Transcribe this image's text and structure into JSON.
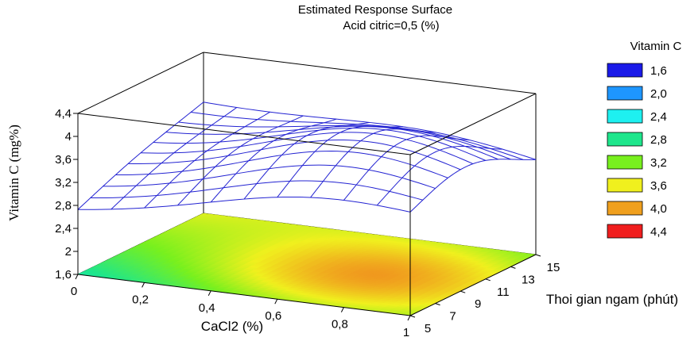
{
  "chart_data": {
    "type": "surface",
    "title": "Estimated Response Surface",
    "subtitle": "Acid citric=0,5 (%)",
    "xlabel": "CaCl2 (%)",
    "ylabel": "Thoi gian ngam (phút)",
    "zlabel": "Vitamin C  (mg%)",
    "x_ticks": [
      "0",
      "0,2",
      "0,4",
      "0,6",
      "0,8",
      "1"
    ],
    "y_ticks": [
      "5",
      "7",
      "9",
      "11",
      "13",
      "15"
    ],
    "z_ticks": [
      "1,6",
      "2",
      "2,4",
      "2,8",
      "3,2",
      "3,6",
      "4",
      "4,4"
    ],
    "xlim": [
      0,
      1
    ],
    "ylim": [
      5,
      15
    ],
    "zlim": [
      1.6,
      4.4
    ],
    "surface": {
      "x": [
        0,
        0.1,
        0.2,
        0.3,
        0.4,
        0.5,
        0.6,
        0.7,
        0.8,
        0.9,
        1.0
      ],
      "y": [
        5,
        6,
        7,
        8,
        9,
        10,
        11,
        12,
        13,
        14,
        15
      ],
      "peak_x": 0.72,
      "peak_y": 9.5,
      "peak_z": 4.02,
      "corner_values": {
        "x0_y5": 2.68,
        "x1_y5": 3.05,
        "x0_y15": 3.5,
        "x1_y15": 3.0
      }
    },
    "legend": {
      "title": "Vitamin C",
      "position": "right",
      "entries": [
        {
          "label": "1,6",
          "color": "#1a1ae8"
        },
        {
          "label": "2,0",
          "color": "#1e96ff"
        },
        {
          "label": "2,4",
          "color": "#1ef0f0"
        },
        {
          "label": "2,8",
          "color": "#1ee68c"
        },
        {
          "label": "3,2",
          "color": "#78f01e"
        },
        {
          "label": "3,6",
          "color": "#f0f01e"
        },
        {
          "label": "4,0",
          "color": "#f0a01e"
        },
        {
          "label": "4,4",
          "color": "#f01e1e"
        }
      ]
    },
    "wireframe_color": "#2323d2"
  }
}
